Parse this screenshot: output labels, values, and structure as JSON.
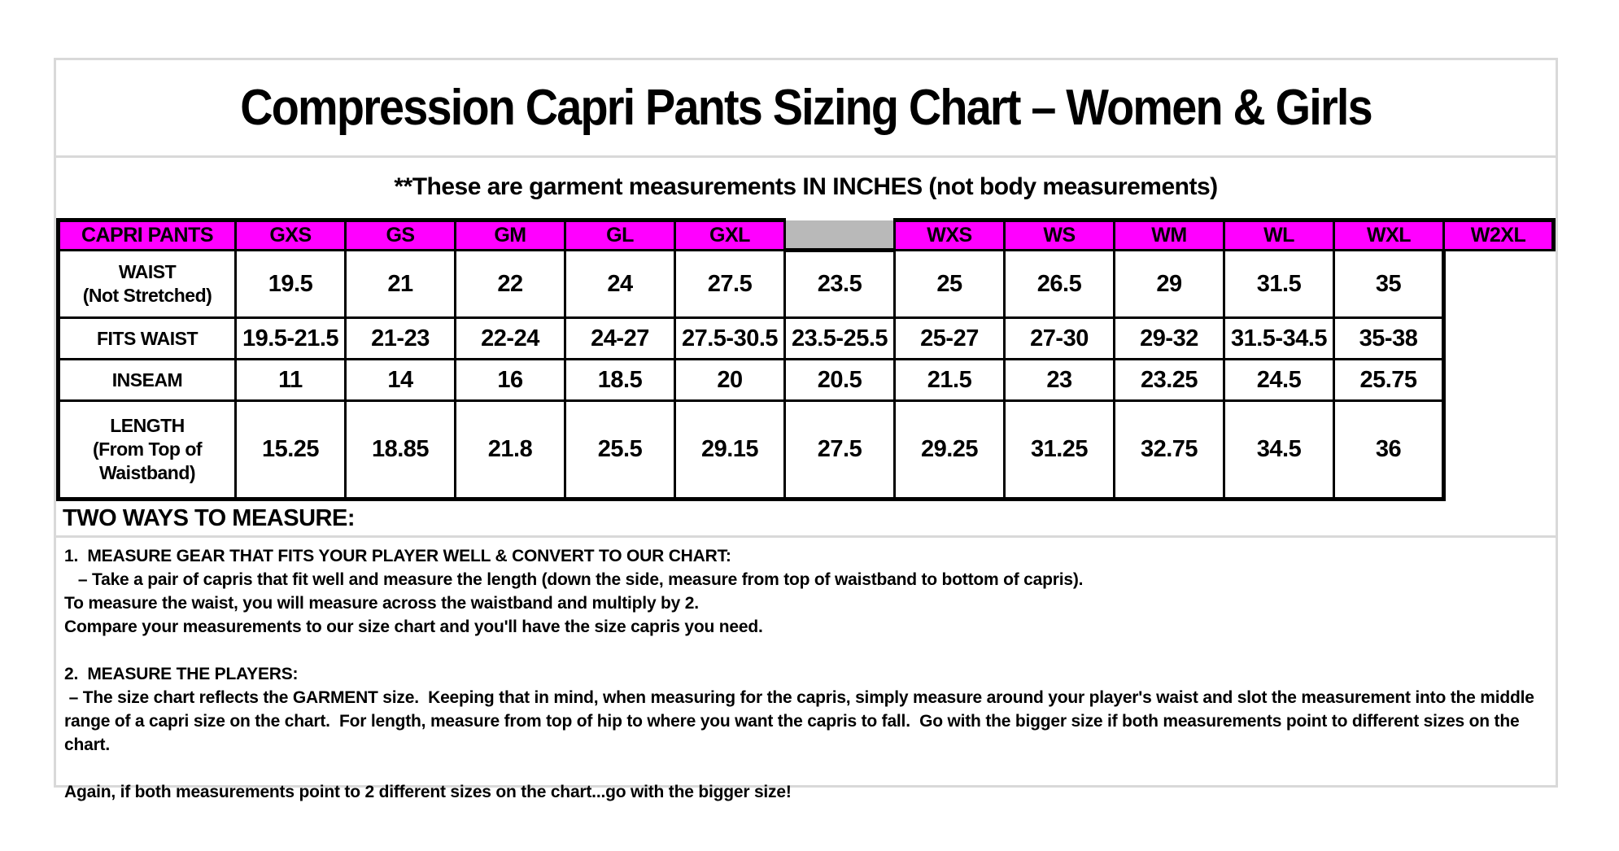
{
  "header": {
    "title": "Compression Capri Pants Sizing Chart – Women & Girls",
    "subtitle": "**These are garment measurements IN INCHES (not body measurements)"
  },
  "sizing_table": {
    "corner_header": "CAPRI PANTS",
    "girls_columns": [
      "GXS",
      "GS",
      "GM",
      "GL",
      "GXL"
    ],
    "women_columns": [
      "WXS",
      "WS",
      "WM",
      "WL",
      "WXL",
      "W2XL"
    ],
    "rows": [
      {
        "label": "WAIST\n(Not Stretched)",
        "girls": [
          "19.5",
          "21",
          "22",
          "24",
          "27.5"
        ],
        "women": [
          "23.5",
          "25",
          "26.5",
          "29",
          "31.5",
          "35"
        ]
      },
      {
        "label": "FITS WAIST",
        "girls": [
          "19.5-21.5",
          "21-23",
          "22-24",
          "24-27",
          "27.5-30.5"
        ],
        "women": [
          "23.5-25.5",
          "25-27",
          "27-30",
          "29-32",
          "31.5-34.5",
          "35-38"
        ]
      },
      {
        "label": "INSEAM",
        "girls": [
          "11",
          "14",
          "16",
          "18.5",
          "20"
        ],
        "women": [
          "20.5",
          "21.5",
          "23",
          "23.25",
          "24.5",
          "25.75"
        ]
      },
      {
        "label": "LENGTH\n(From Top of\nWaistband)",
        "girls": [
          "15.25",
          "18.85",
          "21.8",
          "25.5",
          "29.15"
        ],
        "women": [
          "27.5",
          "29.25",
          "31.25",
          "32.75",
          "34.5",
          "36"
        ]
      }
    ]
  },
  "instructions": {
    "heading": "TWO WAYS TO MEASURE:",
    "paragraphs": [
      "1.  MEASURE GEAR THAT FITS YOUR PLAYER WELL & CONVERT TO OUR CHART:",
      "   – Take a pair of capris that fit well and measure the length (down the side, measure from top of waistband to bottom of capris).",
      "To measure the waist, you will measure across the waistband and multiply by 2.",
      "Compare your measurements to our size chart and you'll have the size capris you need.",
      "2.  MEASURE THE PLAYERS:",
      " – The size chart reflects the GARMENT size.  Keeping that in mind, when measuring for the capris, simply measure around your player's waist and slot the measurement into the middle range of a capri size on the chart.  For length, measure from top of hip to where you want the capris to fall.  Go with the bigger size if both measurements point to different sizes on the chart.",
      "Again, if both measurements point to 2 different sizes on the chart...go with the bigger size!"
    ]
  },
  "colors": {
    "size_header_bg": "#FF00FF",
    "spacer_bg": "#B9B9B9",
    "page_border": "#D9D9D9",
    "table_border": "#000000"
  }
}
